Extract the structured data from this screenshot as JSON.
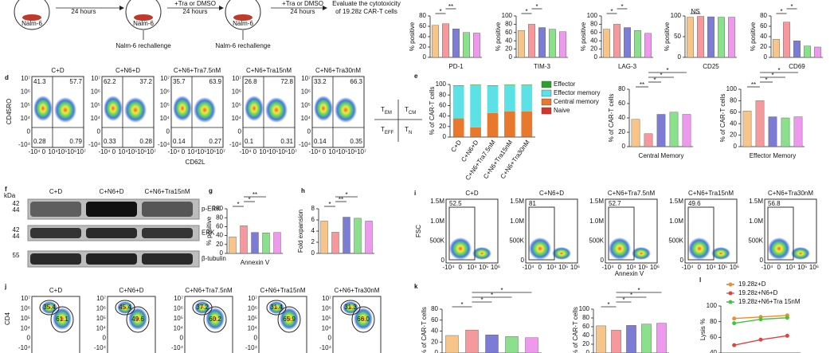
{
  "header": {
    "texts": [
      "Nalm-6",
      "24 hours",
      "Nalm-6",
      "+Tra or DMSO",
      "24 hours",
      "Nalm-6",
      "+Tra or DMSO",
      "24 hours",
      "Evaluate the cytotoxicity",
      "of 19.28z CAR-T cells",
      "Nalm-6 rechallenge",
      "Nalm-6 rechallenge"
    ]
  },
  "flow_d": {
    "panel": "d",
    "ylabel": "CD45RO",
    "xlabel": "CD62L",
    "yticks": [
      "10⁷",
      "10⁶",
      "10⁵",
      "10⁴",
      "0",
      "-10⁴"
    ],
    "xticks": [
      "-10⁴",
      "0",
      "10⁴",
      "10⁵",
      "10⁶",
      "10⁷"
    ],
    "plots": [
      {
        "title": "C+D",
        "q": [
          "41.3",
          "57.7",
          "0.28",
          "0.79"
        ]
      },
      {
        "title": "C+N6+D",
        "q": [
          "62.2",
          "37.2",
          "0.33",
          "0.28"
        ]
      },
      {
        "title": "C+N6+Tra7.5nM",
        "q": [
          "35.7",
          "63.9",
          "0.14",
          "0.27"
        ]
      },
      {
        "title": "C+N6+Tra15nM",
        "q": [
          "26.8",
          "72.8",
          "0.1",
          "0.31"
        ]
      },
      {
        "title": "C+N6+Tra30nM",
        "q": [
          "33.2",
          "66.3",
          "0.14",
          "0.35"
        ]
      }
    ],
    "key": [
      {
        "main": "T",
        "sub": "EM"
      },
      {
        "main": "T",
        "sub": "CM"
      },
      {
        "main": "T",
        "sub": "EFF"
      },
      {
        "main": "T",
        "sub": "N"
      }
    ]
  },
  "blot": {
    "panel": "f",
    "unit": "kDa",
    "lanes": [
      "C+D",
      "C+N6+D",
      "C+N6+Tra15nM"
    ],
    "rows": [
      {
        "label": "p-ERK",
        "kda": [
          "42",
          "44"
        ]
      },
      {
        "label": "ERK",
        "kda": [
          "42",
          "44"
        ]
      },
      {
        "label": "β-tubulin",
        "kda": [
          "55"
        ]
      }
    ]
  },
  "flow_i": {
    "panel": "i",
    "ylabel": "FSC",
    "xlabel": "Annexin V",
    "yticks": [
      "1.5M",
      "1.0M",
      "500K",
      "0"
    ],
    "xticks": [
      "-10⁴",
      "0",
      "10⁴",
      "10⁵",
      "10⁶"
    ],
    "plots": [
      {
        "title": "C+D",
        "gate": "52.5"
      },
      {
        "title": "C+N6+D",
        "gate": "81"
      },
      {
        "title": "C+N6+Tra7.5nM",
        "gate": "52.7"
      },
      {
        "title": "C+N6+Tra15nM",
        "gate": "49.6"
      },
      {
        "title": "C+N6+Tra30nM",
        "gate": "56.8"
      }
    ]
  },
  "flow_j": {
    "panel": "j",
    "ylabel": "CD4",
    "yticks": [
      "10⁷",
      "10⁶",
      "10⁵",
      "10⁴",
      "0",
      "-10⁴"
    ],
    "plots": [
      {
        "title": "C+D",
        "gates": [
          "35.4",
          "61.1"
        ]
      },
      {
        "title": "C+N6+D",
        "gates": [
          "45.4",
          "49.6"
        ]
      },
      {
        "title": "C+N6+Tra7.5nM",
        "gates": [
          "37.2",
          "60.2"
        ]
      },
      {
        "title": "C+N6+Tra15nM",
        "gates": [
          "31.4",
          "65.9"
        ]
      },
      {
        "title": "C+N6+Tra30nM",
        "gates": [
          "31.3",
          "66.0"
        ]
      }
    ]
  },
  "chart_data": [
    {
      "type": "bar",
      "xlabel": "PD-1",
      "ylabel": "% positive",
      "values": [
        62,
        65,
        55,
        48,
        47
      ],
      "colors": [
        "#f7c48a",
        "#f5999c",
        "#7c7cd6",
        "#8be08b",
        "#ee99ee"
      ],
      "ylim": [
        0,
        80
      ],
      "yticks": [
        0,
        20,
        40,
        60,
        80
      ],
      "annotations": [
        "*",
        "**"
      ]
    },
    {
      "type": "bar",
      "xlabel": "TIM-3",
      "ylabel": "% positive",
      "values": [
        65,
        80,
        72,
        68,
        62
      ],
      "colors": [
        "#f7c48a",
        "#f5999c",
        "#7c7cd6",
        "#8be08b",
        "#ee99ee"
      ],
      "ylim": [
        0,
        100
      ],
      "yticks": [
        0,
        20,
        40,
        60,
        80,
        100
      ],
      "annotations": [
        "*",
        "*"
      ]
    },
    {
      "type": "bar",
      "xlabel": "LAG-3",
      "ylabel": "% positive",
      "values": [
        68,
        80,
        72,
        65,
        58
      ],
      "colors": [
        "#f7c48a",
        "#f5999c",
        "#7c7cd6",
        "#8be08b",
        "#ee99ee"
      ],
      "ylim": [
        0,
        100
      ],
      "yticks": [
        0,
        20,
        40,
        60,
        80,
        100
      ],
      "annotations": [
        "*",
        "*"
      ]
    },
    {
      "type": "bar",
      "xlabel": "CD25",
      "ylabel": "% positive",
      "values": [
        97,
        99,
        98,
        97,
        97
      ],
      "colors": [
        "#f7c48a",
        "#f5999c",
        "#7c7cd6",
        "#8be08b",
        "#ee99ee"
      ],
      "ylim": [
        0,
        100
      ],
      "yticks": [
        0,
        50,
        100
      ],
      "annotations": [
        "NS"
      ]
    },
    {
      "type": "bar",
      "xlabel": "CD69",
      "ylabel": "% positive",
      "values": [
        35,
        68,
        32,
        22,
        20
      ],
      "colors": [
        "#f7c48a",
        "#f5999c",
        "#7c7cd6",
        "#8be08b",
        "#ee99ee"
      ],
      "ylim": [
        0,
        80
      ],
      "yticks": [
        0,
        20,
        40,
        60,
        80
      ],
      "annotations": [
        "*",
        "*"
      ]
    },
    {
      "type": "stacked_bar",
      "panel": "e",
      "ylabel": "% of CAR-T cells",
      "categories": [
        "C+D",
        "C+N6+D",
        "C+N6+Tra7.5nM",
        "C+N6+Tra15nM",
        "C+N6+Tra30nM"
      ],
      "series": [
        {
          "name": "Effector",
          "color": "#2ca02c",
          "values": [
            1,
            1,
            1,
            1,
            1
          ]
        },
        {
          "name": "Effector memory",
          "color": "#5ce1e6",
          "values": [
            62,
            80,
            52,
            50,
            50
          ]
        },
        {
          "name": "Central memory",
          "color": "#e8782c",
          "values": [
            35,
            18,
            45,
            48,
            48
          ]
        },
        {
          "name": "Naive",
          "color": "#d9342b",
          "values": [
            0.5,
            0.5,
            0.5,
            0.5,
            0.5
          ]
        }
      ],
      "ylim": [
        0,
        100
      ],
      "yticks": [
        0,
        20,
        40,
        60,
        80,
        100
      ]
    },
    {
      "type": "bar",
      "xlabel": "Central Memory",
      "ylabel": "% of CAR-T cells",
      "values": [
        38,
        18,
        45,
        48,
        45
      ],
      "colors": [
        "#f7c48a",
        "#f5999c",
        "#7c7cd6",
        "#8be08b",
        "#ee99ee"
      ],
      "ylim": [
        0,
        80
      ],
      "yticks": [
        0,
        20,
        40,
        60,
        80
      ],
      "annotations": [
        "**",
        "*",
        "*",
        "*"
      ]
    },
    {
      "type": "bar",
      "xlabel": "Effector Memory",
      "ylabel": "% of CAR-T cells",
      "values": [
        62,
        80,
        52,
        50,
        52
      ],
      "colors": [
        "#f7c48a",
        "#f5999c",
        "#7c7cd6",
        "#8be08b",
        "#ee99ee"
      ],
      "ylim": [
        0,
        100
      ],
      "yticks": [
        0,
        20,
        40,
        60,
        80,
        100
      ],
      "annotations": [
        "**",
        "*",
        "*",
        "*"
      ]
    },
    {
      "type": "bar",
      "panel": "g",
      "xlabel": "Annexin V",
      "ylabel": "% positive",
      "values": [
        37,
        62,
        47,
        46,
        47
      ],
      "colors": [
        "#f7c48a",
        "#f5999c",
        "#7c7cd6",
        "#8be08b",
        "#ee99ee"
      ],
      "ylim": [
        0,
        100
      ],
      "yticks": [
        0,
        20,
        40,
        60,
        80,
        100
      ],
      "annotations": [
        "*",
        "*",
        "**"
      ]
    },
    {
      "type": "bar",
      "panel": "h",
      "ylabel": "Fold expansion",
      "values": [
        5.8,
        3.8,
        6.5,
        6.3,
        5.8
      ],
      "colors": [
        "#f7c48a",
        "#f5999c",
        "#7c7cd6",
        "#8be08b",
        "#ee99ee"
      ],
      "ylim": [
        0,
        8
      ],
      "yticks": [
        0,
        2,
        4,
        6,
        8
      ],
      "annotations": [
        "*",
        "**",
        "*"
      ]
    },
    {
      "type": "bar",
      "panel": "k",
      "ylabel": "% of CAR-T cells",
      "values": [
        32,
        42,
        33,
        30,
        28
      ],
      "colors": [
        "#f7c48a",
        "#f5999c",
        "#7c7cd6",
        "#8be08b",
        "#ee99ee"
      ],
      "ylim": [
        0,
        80
      ],
      "yticks": [
        0,
        20,
        40,
        60,
        80
      ],
      "annotations": [
        "*",
        "*",
        "*",
        "*"
      ]
    },
    {
      "type": "bar",
      "ylabel": "% of CAR-T cells",
      "values": [
        62,
        52,
        63,
        66,
        68
      ],
      "colors": [
        "#f7c48a",
        "#f5999c",
        "#7c7cd6",
        "#8be08b",
        "#ee99ee"
      ],
      "ylim": [
        0,
        100
      ],
      "yticks": [
        0,
        20,
        40,
        60,
        80,
        100
      ],
      "annotations": [
        "*",
        "*",
        "*",
        "*"
      ]
    },
    {
      "type": "line",
      "panel": "l",
      "ylabel": "Lysis %",
      "categories": [
        null,
        null,
        null
      ],
      "series": [
        {
          "name": "19.28z+D",
          "color": "#f28c28",
          "values": [
            84,
            86,
            88
          ]
        },
        {
          "name": "19.28z+N6+D",
          "color": "#e3413b",
          "values": [
            50,
            57,
            62
          ]
        },
        {
          "name": "19.28z+N6+Tra 15nM",
          "color": "#3cc83c",
          "values": [
            78,
            83,
            85
          ]
        }
      ],
      "ylim": [
        40,
        100
      ],
      "yticks": [
        40,
        60,
        80,
        100
      ]
    }
  ]
}
